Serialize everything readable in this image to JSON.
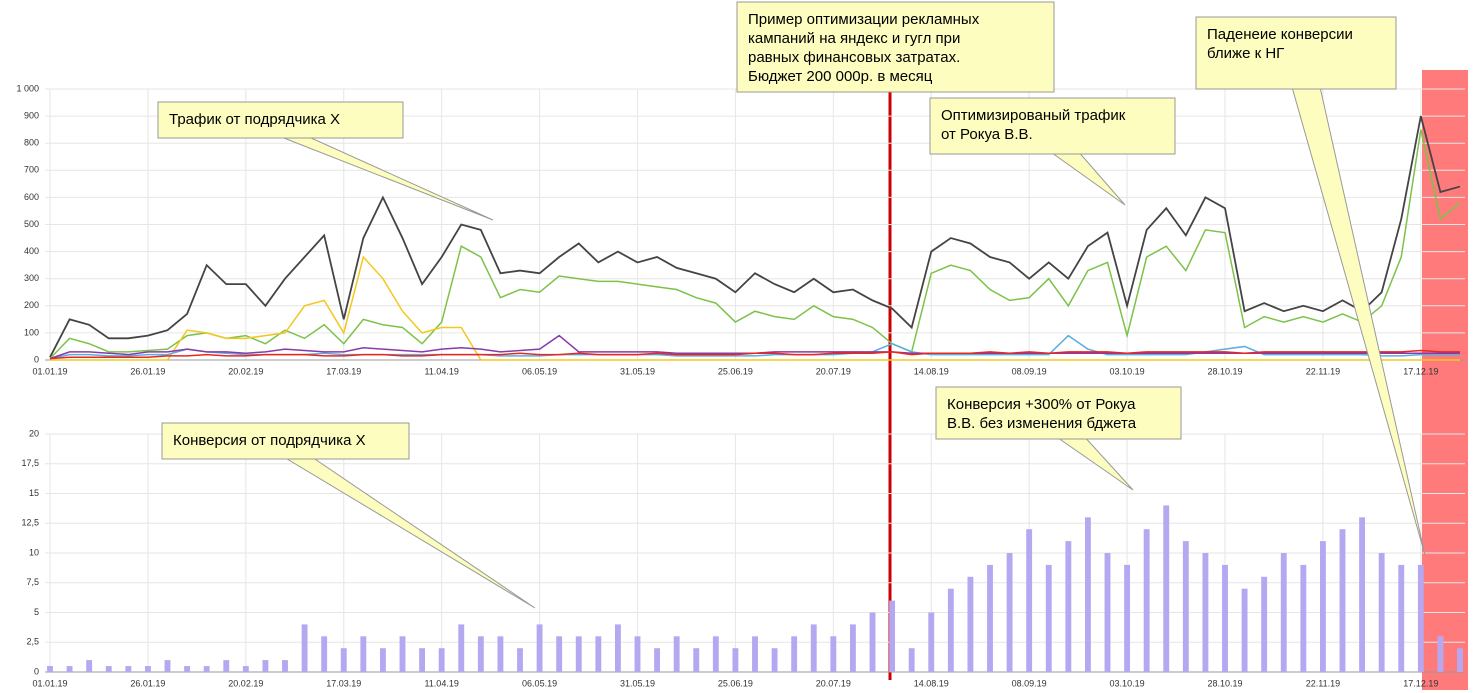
{
  "chart_data": [
    {
      "type": "line",
      "categories": [
        "01.01.19",
        null,
        null,
        null,
        null,
        "26.01.19",
        null,
        null,
        null,
        null,
        "20.02.19",
        null,
        null,
        null,
        null,
        "17.03.19",
        null,
        null,
        null,
        null,
        "11.04.19",
        null,
        null,
        null,
        null,
        "06.05.19",
        null,
        null,
        null,
        null,
        "31.05.19",
        null,
        null,
        null,
        null,
        "25.06.19",
        null,
        null,
        null,
        null,
        "20.07.19",
        null,
        null,
        null,
        null,
        "14.08.19",
        null,
        null,
        null,
        null,
        "08.09.19",
        null,
        null,
        null,
        null,
        "03.10.19",
        null,
        null,
        null,
        null,
        "28.10.19",
        null,
        null,
        null,
        null,
        "22.11.19",
        null,
        null,
        null,
        null,
        "17.12.19",
        null,
        null
      ],
      "ylim": [
        0,
        1000
      ],
      "yticks": [
        0,
        100,
        200,
        300,
        400,
        500,
        600,
        700,
        800,
        900,
        {
          "value": 1000,
          "label": "1 000"
        }
      ],
      "grid": true,
      "series": [
        {
          "color": "#444444",
          "values": [
            10,
            150,
            130,
            80,
            80,
            90,
            110,
            170,
            350,
            280,
            280,
            200,
            300,
            380,
            460,
            150,
            450,
            600,
            450,
            280,
            380,
            500,
            480,
            320,
            330,
            320,
            380,
            430,
            360,
            400,
            360,
            380,
            340,
            320,
            300,
            250,
            320,
            280,
            250,
            300,
            250,
            260,
            220,
            190,
            120,
            400,
            450,
            430,
            380,
            360,
            300,
            360,
            300,
            420,
            470,
            200,
            480,
            560,
            460,
            600,
            560,
            180,
            210,
            180,
            200,
            180,
            220,
            180,
            250,
            520,
            900,
            620,
            640
          ]
        },
        {
          "color": "#7cc24a",
          "values": [
            5,
            80,
            60,
            30,
            30,
            35,
            40,
            90,
            100,
            80,
            90,
            60,
            110,
            80,
            130,
            60,
            150,
            130,
            120,
            60,
            140,
            420,
            380,
            230,
            260,
            250,
            310,
            300,
            290,
            290,
            280,
            270,
            260,
            230,
            210,
            140,
            180,
            160,
            150,
            200,
            160,
            150,
            120,
            60,
            30,
            320,
            350,
            330,
            260,
            220,
            230,
            300,
            200,
            330,
            360,
            90,
            380,
            420,
            330,
            480,
            470,
            120,
            160,
            140,
            160,
            140,
            170,
            140,
            200,
            380,
            850,
            520,
            580
          ]
        },
        {
          "color": "#f2c81e",
          "values": [
            0,
            0,
            0,
            0,
            0,
            0,
            0,
            110,
            100,
            80,
            80,
            90,
            100,
            200,
            220,
            100,
            380,
            300,
            180,
            100,
            120,
            120,
            0,
            0,
            0,
            0,
            0,
            0,
            0,
            0,
            0,
            0,
            0,
            0,
            0,
            0,
            0,
            0,
            0,
            0,
            0,
            0,
            0,
            0,
            0,
            0,
            0,
            0,
            0,
            0,
            0,
            0,
            0,
            0,
            0,
            0,
            0,
            0,
            0,
            0,
            0,
            0,
            0,
            0,
            0,
            0,
            0,
            0,
            0,
            0,
            0,
            0,
            0
          ]
        },
        {
          "color": "#5aaee0",
          "values": [
            5,
            20,
            20,
            15,
            15,
            20,
            20,
            40,
            30,
            25,
            20,
            20,
            20,
            20,
            25,
            20,
            20,
            20,
            20,
            20,
            20,
            20,
            20,
            15,
            15,
            15,
            20,
            20,
            20,
            20,
            20,
            20,
            15,
            15,
            15,
            15,
            15,
            20,
            20,
            20,
            20,
            25,
            30,
            60,
            30,
            20,
            20,
            20,
            20,
            20,
            20,
            20,
            90,
            40,
            20,
            20,
            20,
            20,
            20,
            30,
            40,
            50,
            20,
            20,
            20,
            20,
            20,
            20,
            15,
            15,
            20,
            20,
            20
          ]
        },
        {
          "color": "#8a3aa8",
          "values": [
            5,
            30,
            30,
            25,
            20,
            30,
            30,
            40,
            30,
            30,
            25,
            30,
            40,
            35,
            30,
            30,
            45,
            40,
            35,
            30,
            40,
            45,
            40,
            30,
            35,
            40,
            90,
            30,
            30,
            30,
            30,
            30,
            25,
            25,
            25,
            25,
            25,
            30,
            30,
            30,
            30,
            30,
            30,
            30,
            25,
            25,
            25,
            25,
            25,
            25,
            25,
            25,
            25,
            25,
            25,
            25,
            25,
            25,
            25,
            25,
            25,
            25,
            25,
            25,
            25,
            25,
            25,
            25,
            25,
            25,
            25,
            25,
            25
          ]
        },
        {
          "color": "#e8281e",
          "values": [
            5,
            10,
            10,
            10,
            10,
            10,
            15,
            15,
            20,
            15,
            15,
            20,
            20,
            20,
            15,
            15,
            20,
            20,
            15,
            15,
            20,
            20,
            20,
            20,
            25,
            20,
            20,
            25,
            20,
            20,
            20,
            25,
            20,
            20,
            20,
            20,
            25,
            25,
            20,
            20,
            25,
            25,
            25,
            30,
            20,
            25,
            25,
            25,
            30,
            25,
            30,
            25,
            30,
            30,
            30,
            25,
            30,
            30,
            30,
            30,
            30,
            25,
            30,
            30,
            30,
            30,
            30,
            30,
            30,
            30,
            35,
            30,
            30
          ]
        }
      ]
    },
    {
      "type": "bar",
      "categories": [
        "01.01.19",
        null,
        null,
        null,
        null,
        "26.01.19",
        null,
        null,
        null,
        null,
        "20.02.19",
        null,
        null,
        null,
        null,
        "17.03.19",
        null,
        null,
        null,
        null,
        "11.04.19",
        null,
        null,
        null,
        null,
        "06.05.19",
        null,
        null,
        null,
        null,
        "31.05.19",
        null,
        null,
        null,
        null,
        "25.06.19",
        null,
        null,
        null,
        null,
        "20.07.19",
        null,
        null,
        null,
        null,
        "14.08.19",
        null,
        null,
        null,
        null,
        "08.09.19",
        null,
        null,
        null,
        null,
        "03.10.19",
        null,
        null,
        null,
        null,
        "28.10.19",
        null,
        null,
        null,
        null,
        "22.11.19",
        null,
        null,
        null,
        null,
        "17.12.19",
        null,
        null
      ],
      "ylim": [
        0,
        20
      ],
      "yticks": [
        0,
        {
          "value": 2.5,
          "label": "2,5"
        },
        5,
        {
          "value": 7.5,
          "label": "7,5"
        },
        10,
        {
          "value": 12.5,
          "label": "12,5"
        },
        15,
        {
          "value": 17.5,
          "label": "17,5"
        },
        20
      ],
      "grid": true,
      "color": "#b6a8f0",
      "values": [
        0.5,
        0.5,
        1,
        0.5,
        0.5,
        0.5,
        1,
        0.5,
        0.5,
        1,
        0.5,
        1,
        1,
        4,
        3,
        2,
        3,
        2,
        3,
        2,
        2,
        4,
        3,
        3,
        2,
        4,
        3,
        3,
        3,
        4,
        3,
        2,
        3,
        2,
        3,
        2,
        3,
        2,
        3,
        4,
        3,
        4,
        5,
        6,
        2,
        5,
        7,
        8,
        9,
        10,
        12,
        9,
        11,
        13,
        10,
        9,
        12,
        14,
        11,
        10,
        9,
        7,
        8,
        10,
        9,
        11,
        12,
        13,
        10,
        9,
        9,
        3,
        2
      ]
    }
  ],
  "annotations": [
    {
      "lines": [
        "Пример оптимизации рекламных",
        "кампаний на яндекс и гугл при",
        "равных финансовых затратах.",
        "Бюджет 200 000р. в месяц"
      ]
    },
    {
      "lines": [
        "Паденеие конверсии",
        "ближе к НГ"
      ]
    },
    {
      "lines": [
        "Трафик от подрядчика Х"
      ]
    },
    {
      "lines": [
        "Оптимизированый трафик",
        "от Рокуа В.В."
      ]
    },
    {
      "lines": [
        "Конверсия +300% от Рокуа",
        "В.В. без изменения бджета"
      ]
    },
    {
      "lines": [
        "Конверсия от подрядчика Х"
      ]
    }
  ]
}
